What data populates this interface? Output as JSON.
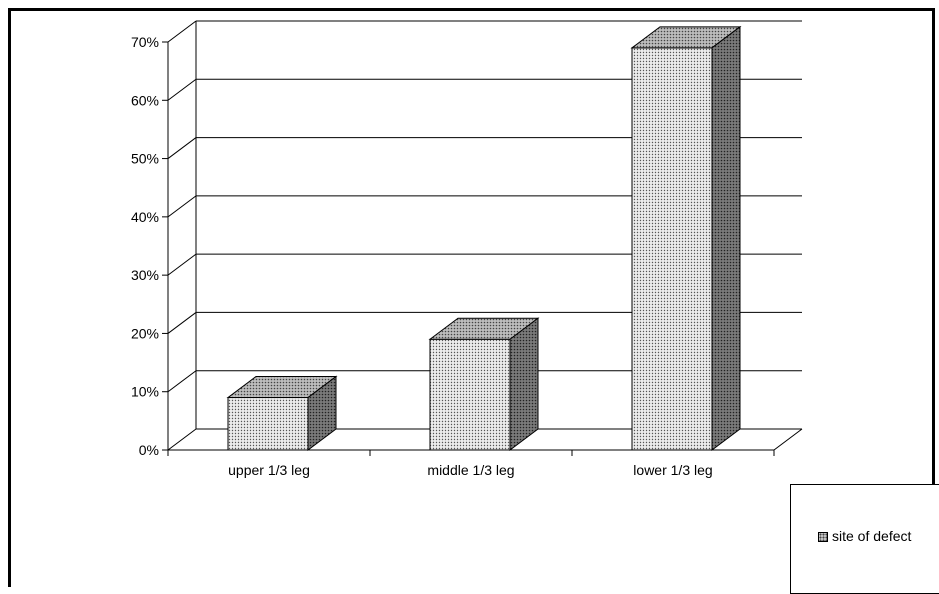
{
  "chart_data": {
    "type": "bar",
    "categories": [
      "upper 1/3 leg",
      "middle 1/3 leg",
      "lower 1/3 leg"
    ],
    "series": [
      {
        "name": "site of defect",
        "values": [
          0.09,
          0.19,
          0.69
        ]
      }
    ],
    "y_ticks": [
      "0%",
      "10%",
      "20%",
      "30%",
      "40%",
      "50%",
      "60%",
      "70%"
    ],
    "ylim": [
      0,
      0.7
    ],
    "grid": true,
    "legend_position": "bottom-right",
    "colors": {
      "bar_front": "#e6e6e6",
      "bar_top": "#b0b0b0",
      "bar_side": "#707070",
      "dot": "#555555"
    }
  },
  "legend": {
    "label": "site of defect"
  }
}
